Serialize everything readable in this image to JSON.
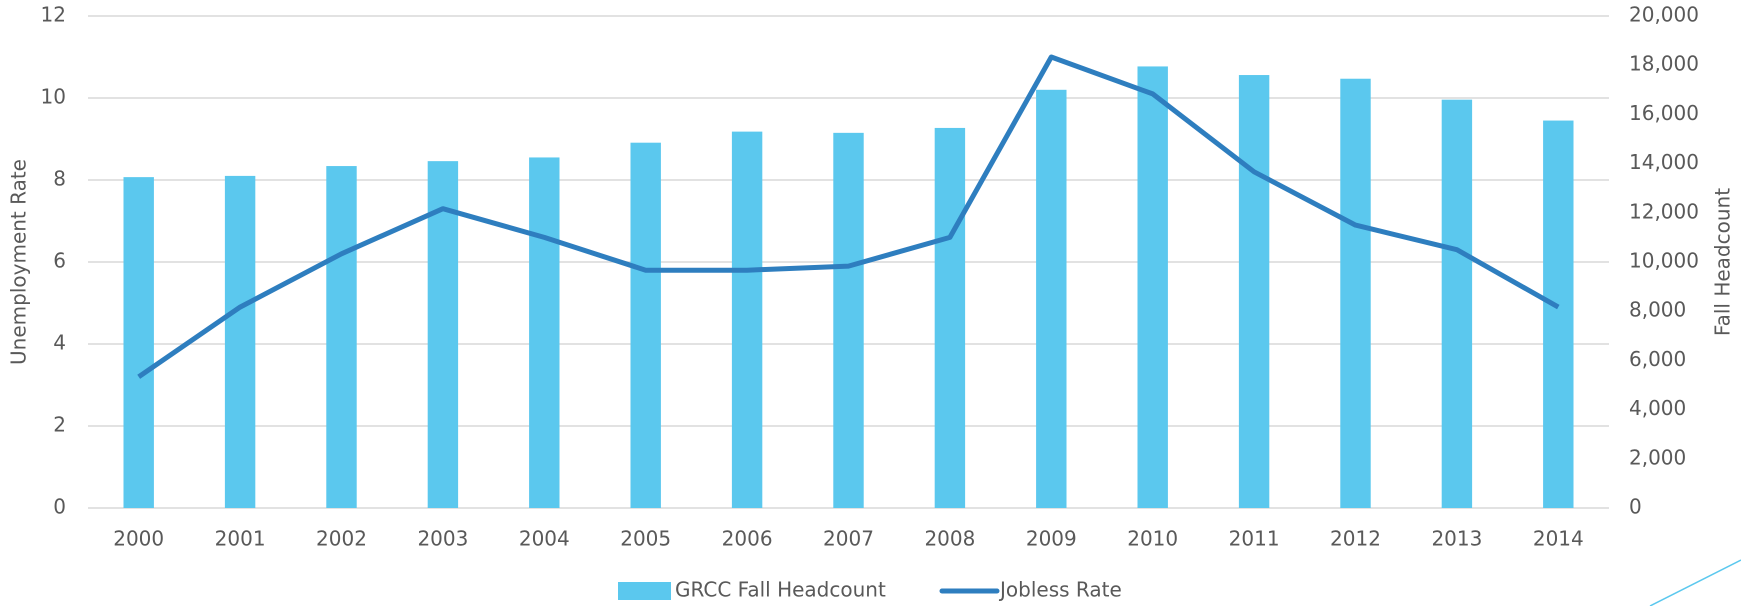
{
  "chart_data": {
    "type": "combo",
    "categories": [
      "2000",
      "2001",
      "2002",
      "2003",
      "2004",
      "2005",
      "2006",
      "2007",
      "2008",
      "2009",
      "2010",
      "2011",
      "2012",
      "2013",
      "2014"
    ],
    "y_label": "Unemployment Rate",
    "y2_label": "Fall Headcount",
    "ylim": [
      0,
      12
    ],
    "yticks": [
      0,
      2,
      4,
      6,
      8,
      10,
      12
    ],
    "y2lim": [
      0,
      20000
    ],
    "y2ticks": [
      0,
      {
        "value": 2000,
        "label": "2,000"
      },
      {
        "value": 4000,
        "label": "4,000"
      },
      {
        "value": 6000,
        "label": "6,000"
      },
      {
        "value": 8000,
        "label": "8,000"
      },
      {
        "value": 10000,
        "label": "10,000"
      },
      {
        "value": 12000,
        "label": "12,000"
      },
      {
        "value": 14000,
        "label": "14,000"
      },
      {
        "value": 16000,
        "label": "16,000"
      },
      {
        "value": 18000,
        "label": "18,000"
      },
      {
        "value": 20000,
        "label": "20,000"
      }
    ],
    "grid": true,
    "legend": "bottom",
    "series": [
      {
        "name": "GRCC Fall Headcount",
        "type": "bar",
        "axis": "y2",
        "color": "#5bc8ee",
        "values": [
          13450,
          13500,
          13900,
          14100,
          14250,
          14850,
          15300,
          15250,
          15450,
          17000,
          17950,
          17600,
          17450,
          16600,
          15750
        ]
      },
      {
        "name": "Jobless Rate",
        "type": "line",
        "color": "#2e7ebf",
        "values": [
          3.2,
          4.9,
          6.2,
          7.3,
          6.6,
          5.8,
          5.8,
          5.9,
          6.6,
          11.0,
          10.1,
          8.2,
          6.9,
          6.3,
          4.9
        ]
      }
    ]
  }
}
